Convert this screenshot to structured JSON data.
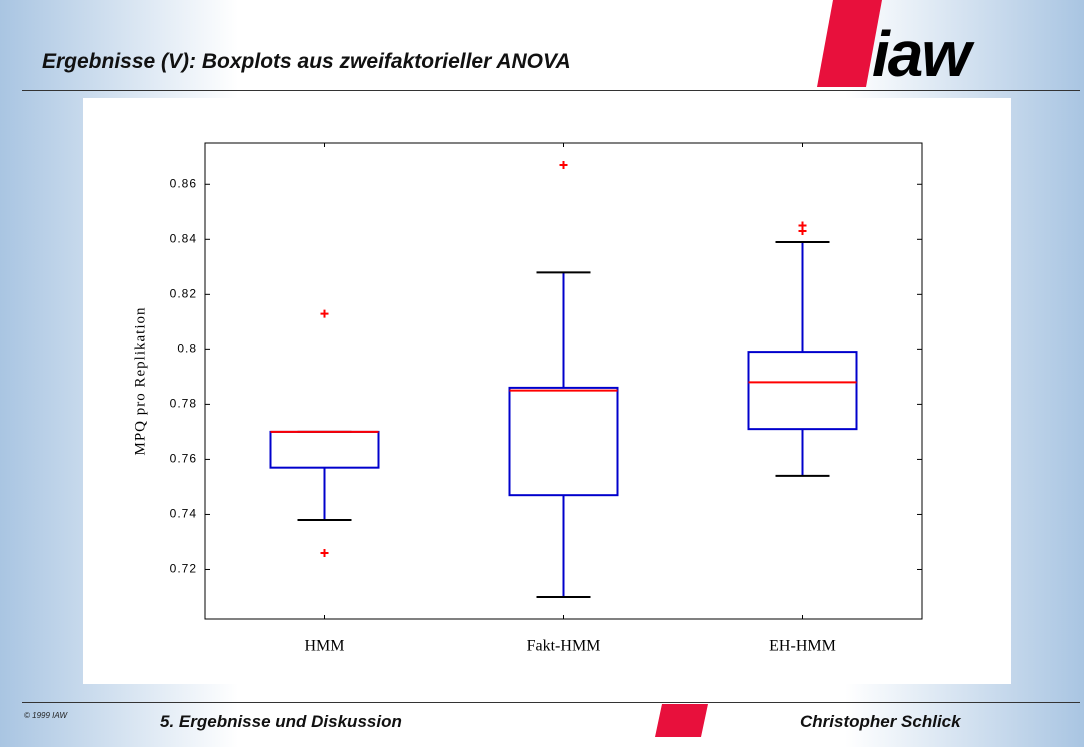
{
  "slide": {
    "title": "Ergebnisse (V): Boxplots aus zweifaktorieller ANOVA",
    "logo": "iaw",
    "copyright": "© 1999 IAW",
    "section": "5. Ergebnisse und Diskussion",
    "author": "Christopher Schlick"
  },
  "chart_data": {
    "type": "boxplot",
    "ylabel": "MPQ pro Replikation",
    "categories": [
      "HMM",
      "Fakt-HMM",
      "EH-HMM"
    ],
    "boxes": [
      {
        "min": 0.738,
        "q1": 0.757,
        "median": 0.77,
        "q3": 0.77,
        "max": 0.77,
        "outliers": [
          0.813,
          0.726
        ]
      },
      {
        "min": 0.71,
        "q1": 0.747,
        "median": 0.785,
        "q3": 0.786,
        "max": 0.828,
        "outliers": [
          0.867
        ]
      },
      {
        "min": 0.754,
        "q1": 0.771,
        "median": 0.788,
        "q3": 0.799,
        "max": 0.839,
        "outliers": [
          0.845,
          0.843
        ]
      }
    ],
    "box_color": "#0000cc",
    "median_color": "#ff0000",
    "cap_color": "#000000",
    "outlier_color": "#ff0000",
    "ylim": [
      0.702,
      0.875
    ],
    "yticks": [
      0.72,
      0.74,
      0.76,
      0.78,
      0.8,
      0.82,
      0.84,
      0.86
    ]
  }
}
